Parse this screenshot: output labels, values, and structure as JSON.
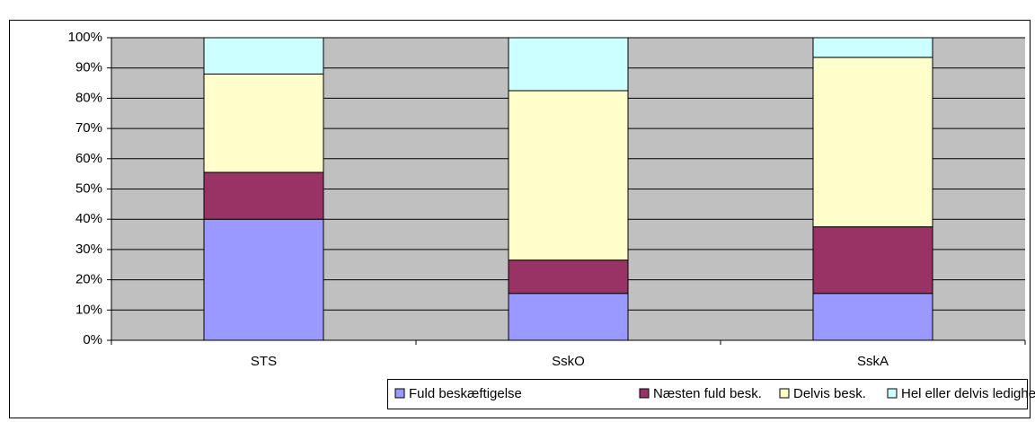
{
  "chart_data": {
    "type": "stacked-bar",
    "categories": [
      "STS",
      "SskO",
      "SskA"
    ],
    "series": [
      {
        "name": "Fuld beskæftigelse",
        "color": "#9999ff",
        "values": [
          40,
          15.5,
          15.5
        ]
      },
      {
        "name": "Næsten fuld besk.",
        "color": "#993366",
        "values": [
          15.5,
          11,
          22
        ]
      },
      {
        "name": "Delvis besk.",
        "color": "#ffffcc",
        "values": [
          32.5,
          56,
          56
        ]
      },
      {
        "name": "Hel eller delvis ledighed",
        "color": "#ccffff",
        "values": [
          12,
          17.5,
          6.5
        ]
      }
    ],
    "ylim": [
      0,
      100
    ],
    "yticks": [
      {
        "value": 0,
        "label": "0%"
      },
      {
        "value": 10,
        "label": "10%"
      },
      {
        "value": 20,
        "label": "20%"
      },
      {
        "value": 30,
        "label": "30%"
      },
      {
        "value": 40,
        "label": "40%"
      },
      {
        "value": 50,
        "label": "50%"
      },
      {
        "value": 60,
        "label": "60%"
      },
      {
        "value": 70,
        "label": "70%"
      },
      {
        "value": 80,
        "label": "80%"
      },
      {
        "value": 90,
        "label": "90%"
      },
      {
        "value": 100,
        "label": "100%"
      }
    ],
    "grid": true,
    "legend": "bottom",
    "background": "#c0c0c0"
  }
}
